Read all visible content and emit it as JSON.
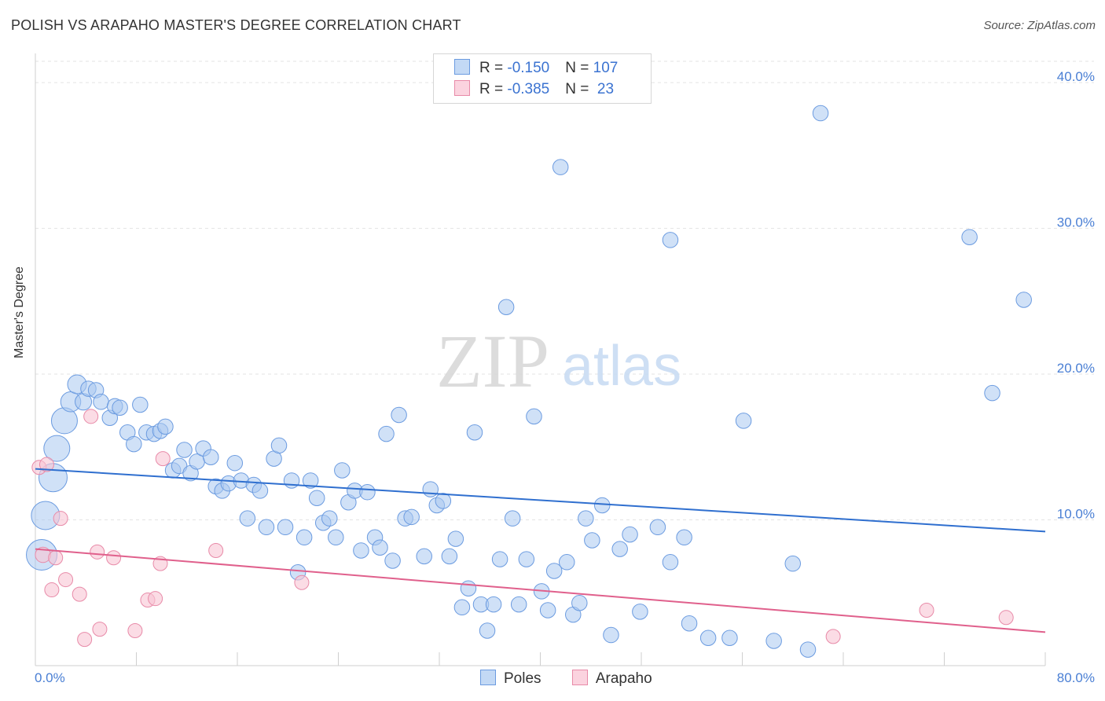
{
  "header": {
    "title": "POLISH VS ARAPAHO MASTER'S DEGREE CORRELATION CHART",
    "source": "Source: ZipAtlas.com"
  },
  "legend": {
    "rows": [
      {
        "r_label": "R = ",
        "r_value": "-0.150",
        "n_label": "N = ",
        "n_value": "107",
        "color": "#a9c8f0",
        "border": "#6b9be0"
      },
      {
        "r_label": "R = ",
        "r_value": "-0.385",
        "n_label": "N = ",
        "n_value": " 23",
        "color": "#f9c4d4",
        "border": "#e88aa8"
      }
    ]
  },
  "watermark": {
    "zip": "ZIP",
    "atlas": "atlas"
  },
  "chart_data": {
    "type": "scatter",
    "title": "POLISH VS ARAPAHO MASTER'S DEGREE CORRELATION CHART",
    "xlabel": "",
    "ylabel": "Master's Degree",
    "xlim": [
      0,
      80
    ],
    "ylim": [
      0,
      42
    ],
    "x_tick_labels": [
      "0.0%",
      "80.0%"
    ],
    "y_ticks": [
      10,
      20,
      30,
      40
    ],
    "y_tick_labels": [
      "10.0%",
      "20.0%",
      "30.0%",
      "40.0%"
    ],
    "grid": true,
    "legend_position": "bottom-center",
    "series": [
      {
        "name": "Poles",
        "color": "#a9c8f0",
        "edge": "#6b9be0",
        "trend": {
          "x": [
            0,
            80
          ],
          "y": [
            13.5,
            9.2
          ],
          "color": "#2f6fcf"
        },
        "points": [
          [
            0.5,
            7.6,
            2.6
          ],
          [
            0.8,
            10.3,
            2.4
          ],
          [
            1.4,
            12.9,
            2.4
          ],
          [
            1.7,
            14.9,
            2.2
          ],
          [
            2.3,
            16.8,
            2.2
          ],
          [
            2.8,
            18.1,
            1.7
          ],
          [
            3.3,
            19.3,
            1.6
          ],
          [
            3.8,
            18.1,
            1.4
          ],
          [
            4.2,
            19.0,
            1.3
          ],
          [
            4.8,
            18.9,
            1.3
          ],
          [
            5.2,
            18.1,
            1.3
          ],
          [
            5.9,
            17.0,
            1.3
          ],
          [
            6.3,
            17.8,
            1.3
          ],
          [
            6.7,
            17.7,
            1.3
          ],
          [
            7.3,
            16.0,
            1.3
          ],
          [
            7.8,
            15.2,
            1.3
          ],
          [
            8.3,
            17.9,
            1.3
          ],
          [
            8.8,
            16.0,
            1.3
          ],
          [
            9.4,
            15.9,
            1.3
          ],
          [
            9.9,
            16.1,
            1.3
          ],
          [
            10.3,
            16.4,
            1.3
          ],
          [
            10.9,
            13.4,
            1.3
          ],
          [
            11.4,
            13.7,
            1.3
          ],
          [
            11.8,
            14.8,
            1.3
          ],
          [
            12.3,
            13.2,
            1.3
          ],
          [
            12.8,
            14.0,
            1.3
          ],
          [
            13.3,
            14.9,
            1.3
          ],
          [
            13.9,
            14.3,
            1.3
          ],
          [
            14.3,
            12.3,
            1.3
          ],
          [
            14.8,
            12.0,
            1.3
          ],
          [
            15.3,
            12.5,
            1.3
          ],
          [
            15.8,
            13.9,
            1.3
          ],
          [
            16.3,
            12.7,
            1.3
          ],
          [
            16.8,
            10.1,
            1.3
          ],
          [
            17.3,
            12.4,
            1.3
          ],
          [
            17.8,
            12.0,
            1.3
          ],
          [
            18.3,
            9.5,
            1.3
          ],
          [
            18.9,
            14.2,
            1.3
          ],
          [
            19.3,
            15.1,
            1.3
          ],
          [
            19.8,
            9.5,
            1.3
          ],
          [
            20.3,
            12.7,
            1.3
          ],
          [
            20.8,
            6.4,
            1.3
          ],
          [
            21.3,
            8.8,
            1.3
          ],
          [
            21.8,
            12.7,
            1.3
          ],
          [
            22.3,
            11.5,
            1.3
          ],
          [
            22.8,
            9.8,
            1.3
          ],
          [
            23.3,
            10.1,
            1.3
          ],
          [
            23.8,
            8.8,
            1.3
          ],
          [
            24.3,
            13.4,
            1.3
          ],
          [
            24.8,
            11.2,
            1.3
          ],
          [
            25.3,
            12.0,
            1.3
          ],
          [
            25.8,
            7.9,
            1.3
          ],
          [
            26.3,
            11.9,
            1.3
          ],
          [
            26.9,
            8.8,
            1.3
          ],
          [
            27.3,
            8.1,
            1.3
          ],
          [
            27.8,
            15.9,
            1.3
          ],
          [
            28.3,
            7.2,
            1.3
          ],
          [
            28.8,
            17.2,
            1.3
          ],
          [
            29.3,
            10.1,
            1.3
          ],
          [
            29.8,
            10.2,
            1.3
          ],
          [
            30.8,
            7.5,
            1.3
          ],
          [
            31.3,
            12.1,
            1.3
          ],
          [
            31.8,
            11.0,
            1.3
          ],
          [
            32.3,
            11.3,
            1.3
          ],
          [
            32.8,
            7.5,
            1.3
          ],
          [
            33.3,
            8.7,
            1.3
          ],
          [
            33.8,
            4.0,
            1.3
          ],
          [
            34.3,
            5.3,
            1.3
          ],
          [
            34.8,
            16.0,
            1.3
          ],
          [
            35.3,
            4.2,
            1.3
          ],
          [
            35.8,
            2.4,
            1.3
          ],
          [
            36.3,
            4.2,
            1.3
          ],
          [
            36.8,
            7.3,
            1.3
          ],
          [
            37.3,
            24.6,
            1.3
          ],
          [
            37.8,
            10.1,
            1.3
          ],
          [
            38.3,
            4.2,
            1.3
          ],
          [
            38.9,
            7.3,
            1.3
          ],
          [
            39.5,
            17.1,
            1.3
          ],
          [
            40.1,
            5.1,
            1.3
          ],
          [
            40.6,
            3.8,
            1.3
          ],
          [
            41.1,
            6.5,
            1.3
          ],
          [
            41.6,
            34.2,
            1.3
          ],
          [
            42.1,
            7.1,
            1.3
          ],
          [
            42.6,
            3.5,
            1.3
          ],
          [
            43.1,
            4.3,
            1.3
          ],
          [
            43.6,
            10.1,
            1.3
          ],
          [
            44.1,
            8.6,
            1.3
          ],
          [
            44.9,
            11.0,
            1.3
          ],
          [
            45.6,
            2.1,
            1.3
          ],
          [
            46.3,
            8.0,
            1.3
          ],
          [
            47.1,
            9.0,
            1.3
          ],
          [
            47.9,
            3.7,
            1.3
          ],
          [
            49.3,
            9.5,
            1.3
          ],
          [
            50.3,
            7.1,
            1.3
          ],
          [
            50.3,
            29.2,
            1.3
          ],
          [
            51.4,
            8.8,
            1.3
          ],
          [
            51.8,
            2.9,
            1.3
          ],
          [
            53.3,
            1.9,
            1.3
          ],
          [
            55.0,
            1.9,
            1.3
          ],
          [
            56.1,
            16.8,
            1.3
          ],
          [
            58.5,
            1.7,
            1.3
          ],
          [
            60.0,
            7.0,
            1.3
          ],
          [
            61.2,
            1.1,
            1.3
          ],
          [
            62.2,
            37.9,
            1.3
          ],
          [
            74.0,
            29.4,
            1.3
          ],
          [
            75.8,
            18.7,
            1.3
          ],
          [
            78.3,
            25.1,
            1.3
          ]
        ]
      },
      {
        "name": "Arapaho",
        "color": "#f9c4d4",
        "edge": "#e88aa8",
        "trend": {
          "x": [
            0,
            80
          ],
          "y": [
            8.0,
            2.3
          ],
          "color": "#e0608c"
        },
        "points": [
          [
            0.3,
            13.6,
            1.2
          ],
          [
            0.6,
            7.6,
            1.3
          ],
          [
            0.9,
            13.8,
            1.2
          ],
          [
            1.3,
            5.2,
            1.2
          ],
          [
            1.6,
            7.4,
            1.2
          ],
          [
            2.0,
            10.1,
            1.2
          ],
          [
            2.4,
            5.9,
            1.2
          ],
          [
            3.5,
            4.9,
            1.2
          ],
          [
            3.9,
            1.8,
            1.2
          ],
          [
            4.4,
            17.1,
            1.2
          ],
          [
            4.9,
            7.8,
            1.2
          ],
          [
            5.1,
            2.5,
            1.2
          ],
          [
            6.2,
            7.4,
            1.2
          ],
          [
            7.9,
            2.4,
            1.2
          ],
          [
            8.9,
            4.5,
            1.2
          ],
          [
            9.5,
            4.6,
            1.2
          ],
          [
            9.9,
            7.0,
            1.2
          ],
          [
            10.1,
            14.2,
            1.2
          ],
          [
            14.3,
            7.9,
            1.2
          ],
          [
            21.1,
            5.7,
            1.2
          ],
          [
            63.2,
            2.0,
            1.2
          ],
          [
            70.6,
            3.8,
            1.2
          ],
          [
            76.9,
            3.3,
            1.2
          ]
        ]
      }
    ]
  },
  "bottom_legend": [
    "Poles",
    "Arapaho"
  ]
}
